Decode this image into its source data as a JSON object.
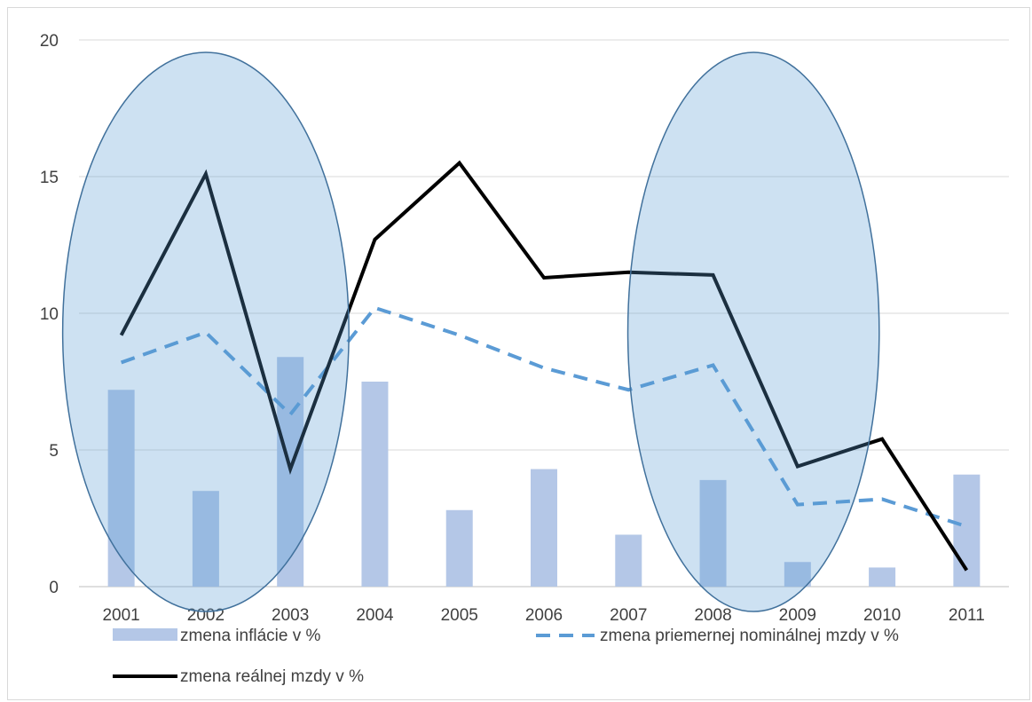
{
  "chart_data": {
    "type": "bar",
    "categories": [
      "2001",
      "2002",
      "2003",
      "2004",
      "2005",
      "2006",
      "2007",
      "2008",
      "2009",
      "2010",
      "2011"
    ],
    "series": [
      {
        "name": "zmena inflácie v %",
        "kind": "bar",
        "color": "#b4c7e7",
        "values": [
          7.2,
          3.5,
          8.4,
          7.5,
          2.8,
          4.3,
          1.9,
          3.9,
          0.9,
          0.7,
          4.1
        ]
      },
      {
        "name": "zmena priemernej nominálnej mzdy v %",
        "kind": "line-dashed",
        "color": "#5b9bd5",
        "values": [
          8.2,
          9.3,
          6.3,
          10.2,
          9.2,
          8.0,
          7.2,
          8.1,
          3.0,
          3.2,
          2.2
        ]
      },
      {
        "name": "zmena reálnej mzdy v %",
        "kind": "line",
        "color": "#000000",
        "values": [
          9.2,
          15.1,
          4.3,
          12.7,
          15.5,
          11.3,
          11.5,
          11.4,
          4.4,
          5.4,
          0.6
        ]
      }
    ],
    "ylim": [
      0,
      20
    ],
    "yticks": [
      "0",
      "5",
      "10",
      "15",
      "20"
    ],
    "grid": true,
    "legend_position": "bottom",
    "annotations": [
      {
        "shape": "ellipse",
        "around": [
          "2001",
          "2003"
        ],
        "color": "#5b9bd5"
      },
      {
        "shape": "ellipse",
        "around": [
          "2008",
          "2009"
        ],
        "color": "#5b9bd5"
      }
    ]
  }
}
